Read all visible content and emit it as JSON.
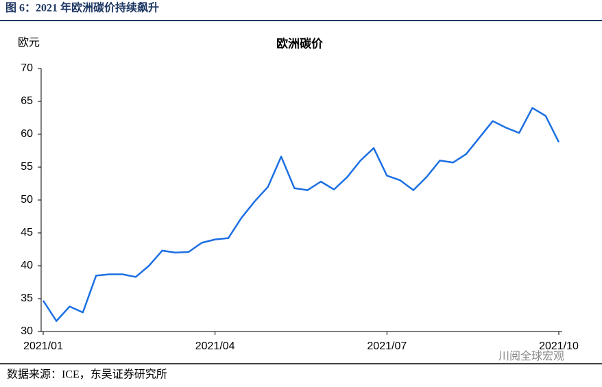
{
  "caption": "图 6：2021 年欧洲碳价持续飙升",
  "source": "数据来源：ICE，东吴证券研究所",
  "watermark": "川阅全球宏观",
  "chart_data": {
    "type": "line",
    "title": "欧洲碳价",
    "y_label": "欧元",
    "categories": [
      "2021/01",
      null,
      null,
      null,
      null,
      null,
      null,
      null,
      null,
      null,
      null,
      null,
      null,
      "2021/04",
      null,
      null,
      null,
      null,
      null,
      null,
      null,
      null,
      null,
      null,
      null,
      null,
      "2021/07",
      null,
      null,
      null,
      null,
      null,
      null,
      null,
      null,
      null,
      null,
      null,
      null,
      "2021/10"
    ],
    "series": [
      {
        "name": "欧洲碳价",
        "color": "#1c6fe3",
        "values": [
          34.7,
          31.6,
          33.8,
          32.9,
          38.5,
          38.7,
          38.7,
          38.3,
          40,
          42.3,
          42,
          42.1,
          43.5,
          44,
          44.2,
          47.3,
          49.8,
          52,
          56.6,
          51.8,
          51.5,
          52.8,
          51.6,
          53.5,
          56,
          57.9,
          53.7,
          53,
          51.5,
          53.5,
          56,
          55.7,
          57,
          59.5,
          62,
          61,
          60.2,
          64,
          62.8,
          58.8
        ]
      }
    ],
    "ylim": [
      30,
      70
    ],
    "yticks": [
      30,
      35,
      40,
      45,
      50,
      55,
      60,
      65,
      70
    ]
  }
}
